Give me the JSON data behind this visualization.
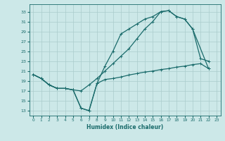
{
  "xlabel": "Humidex (Indice chaleur)",
  "bg_color": "#cce8e8",
  "grid_color": "#aacccc",
  "line_color": "#1a6b6b",
  "xlim": [
    -0.5,
    23.5
  ],
  "ylim": [
    12,
    34.5
  ],
  "yticks": [
    13,
    15,
    17,
    19,
    21,
    23,
    25,
    27,
    29,
    31,
    33
  ],
  "xticks": [
    0,
    1,
    2,
    3,
    4,
    5,
    6,
    7,
    8,
    9,
    10,
    11,
    12,
    13,
    14,
    15,
    16,
    17,
    18,
    19,
    20,
    21,
    22,
    23
  ],
  "line1_x": [
    0,
    1,
    2,
    3,
    4,
    5,
    6,
    7,
    8,
    9,
    10,
    11,
    12,
    13,
    14,
    15,
    16,
    17,
    18,
    19,
    20,
    22
  ],
  "line1_y": [
    20.3,
    19.5,
    18.2,
    17.5,
    17.5,
    17.2,
    17.0,
    18.2,
    19.5,
    21.0,
    22.5,
    24.0,
    25.5,
    27.5,
    29.5,
    31.0,
    33.0,
    33.2,
    32.0,
    31.5,
    29.5,
    21.5
  ],
  "line2_x": [
    0,
    1,
    2,
    3,
    4,
    5,
    6,
    7,
    8,
    9,
    10,
    11,
    12,
    13,
    14,
    15,
    16,
    17,
    18,
    19,
    20,
    21,
    22
  ],
  "line2_y": [
    20.3,
    19.5,
    18.2,
    17.5,
    17.5,
    17.2,
    13.5,
    13.0,
    18.5,
    22.0,
    25.0,
    28.5,
    29.5,
    30.5,
    31.5,
    32.0,
    33.0,
    33.2,
    32.0,
    31.5,
    29.5,
    23.5,
    23.0
  ],
  "line3_x": [
    0,
    1,
    2,
    3,
    4,
    5,
    6,
    7,
    8,
    9,
    10,
    11,
    12,
    13,
    14,
    15,
    16,
    17,
    18,
    19,
    20,
    21,
    22
  ],
  "line3_y": [
    20.3,
    19.5,
    18.2,
    17.5,
    17.5,
    17.2,
    13.5,
    13.0,
    18.5,
    19.3,
    19.5,
    19.8,
    20.2,
    20.5,
    20.8,
    21.0,
    21.3,
    21.5,
    21.8,
    22.0,
    22.3,
    22.5,
    21.5
  ]
}
